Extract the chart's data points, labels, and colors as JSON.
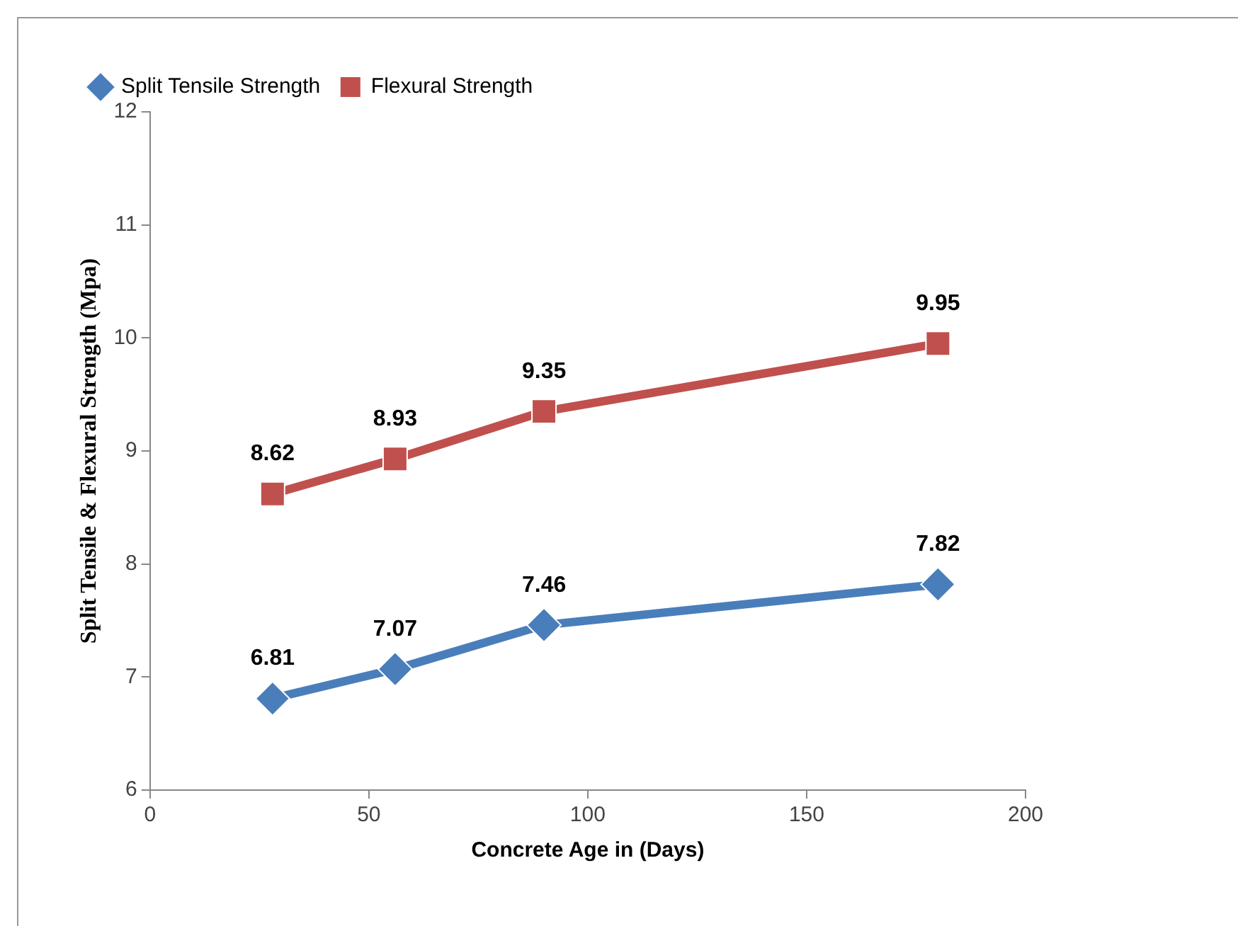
{
  "chart_data": {
    "type": "line",
    "xlabel": "Concrete Age in (Days)",
    "ylabel": "Split Tensile & Flexural Strength (Mpa)",
    "x": [
      28,
      56,
      90,
      180
    ],
    "series": [
      {
        "name": "Split Tensile Strength",
        "color": "#4a7ebb",
        "marker": "diamond",
        "values": [
          6.81,
          7.07,
          7.46,
          7.82
        ]
      },
      {
        "name": "Flexural Strength",
        "color": "#c0504d",
        "marker": "square",
        "values": [
          8.62,
          8.93,
          9.35,
          9.95
        ]
      }
    ],
    "xlim": [
      0,
      200
    ],
    "xticks": [
      0,
      50,
      100,
      150,
      200
    ],
    "ylim": [
      6,
      12
    ],
    "yticks": [
      6,
      7,
      8,
      9,
      10,
      11,
      12
    ],
    "grid": false,
    "legend": "top left",
    "data_labels": true,
    "line_style": "solid"
  }
}
